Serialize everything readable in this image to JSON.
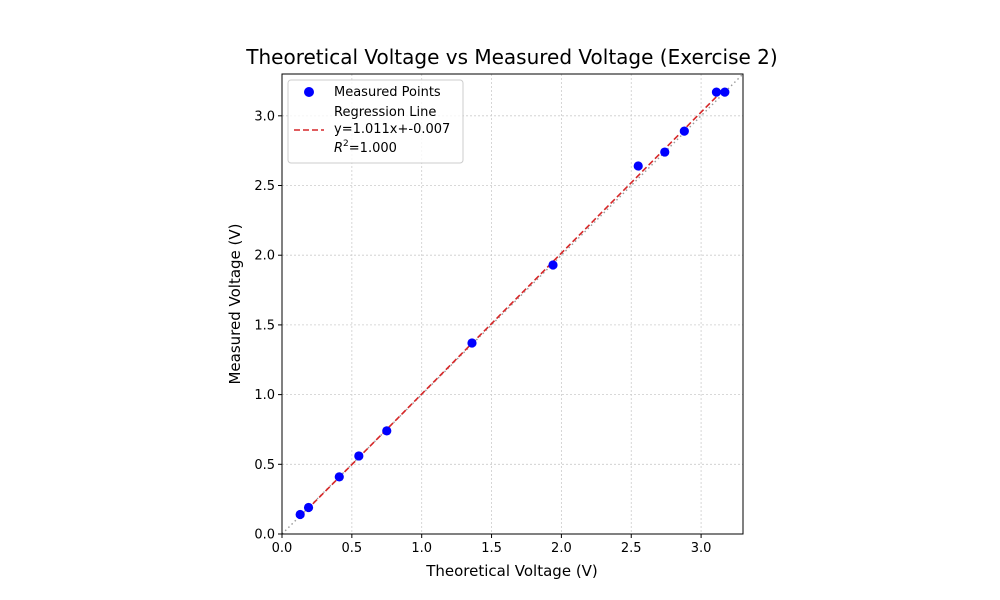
{
  "chart_data": {
    "type": "scatter",
    "title": "Theoretical Voltage vs Measured Voltage (Exercise 2)",
    "xlabel": "Theoretical Voltage (V)",
    "ylabel": "Measured Voltage (V)",
    "xlim": [
      0,
      3.3
    ],
    "ylim": [
      0,
      3.3
    ],
    "xticks": [
      "0.0",
      "0.5",
      "1.0",
      "1.5",
      "2.0",
      "2.5",
      "3.0"
    ],
    "yticks": [
      "0.0",
      "0.5",
      "1.0",
      "1.5",
      "2.0",
      "2.5",
      "3.0"
    ],
    "grid": true,
    "legend_position": "upper-left",
    "series": [
      {
        "name": "Measured Points",
        "color": "#0000ff",
        "x": [
          0.13,
          0.19,
          0.41,
          0.55,
          0.75,
          1.36,
          1.94,
          2.55,
          2.74,
          2.88,
          3.11,
          3.17
        ],
        "y": [
          0.14,
          0.19,
          0.41,
          0.56,
          0.74,
          1.37,
          1.93,
          2.64,
          2.74,
          2.89,
          3.17,
          3.17
        ]
      }
    ],
    "regression": {
      "name": "Regression Line",
      "equation": "y=1.011x+-0.007",
      "r2_label": "R",
      "r2_sup": "2",
      "r2_value": "=1.000",
      "slope": 1.011,
      "intercept": -0.007,
      "x_range": [
        0.13,
        3.17
      ],
      "color": "#d62728"
    },
    "reference_line": {
      "color": "#999999",
      "style": "dotted"
    }
  }
}
